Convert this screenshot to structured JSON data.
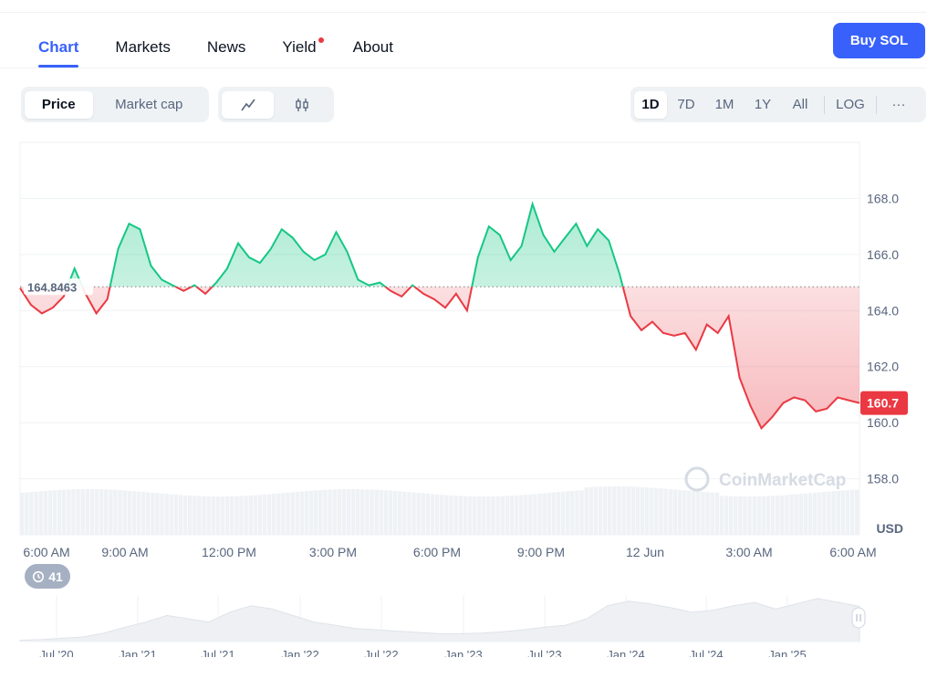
{
  "nav": {
    "tabs": [
      {
        "label": "Chart"
      },
      {
        "label": "Markets"
      },
      {
        "label": "News"
      },
      {
        "label": "Yield"
      },
      {
        "label": "About"
      }
    ],
    "buy_label": "Buy SOL"
  },
  "controls": {
    "metric_options": [
      "Price",
      "Market cap"
    ],
    "selected_metric": "Price",
    "chart_style_icons": [
      "line-chart-icon",
      "candlestick-icon"
    ],
    "selected_style": "line-chart-icon",
    "ranges": [
      "1D",
      "7D",
      "1M",
      "1Y",
      "All",
      "LOG"
    ],
    "selected_range": "1D",
    "more_label": "···"
  },
  "chart_data": {
    "type": "line",
    "reference_price": "164.8463",
    "current_price": "160.7",
    "currency_label": "USD",
    "watermark": "CoinMarketCap",
    "y_ticks": [
      "168.0",
      "166.0",
      "164.0",
      "162.0",
      "160.0",
      "158.0"
    ],
    "ylim": [
      156.0,
      170.0
    ],
    "x_ticks": [
      "6:00 AM",
      "9:00 AM",
      "12:00 PM",
      "3:00 PM",
      "6:00 PM",
      "9:00 PM",
      "12 Jun",
      "3:00 AM",
      "6:00 AM"
    ],
    "series": [
      {
        "values": [
          164.8,
          164.2,
          163.9,
          164.1,
          164.5,
          165.5,
          164.6,
          163.9,
          164.4,
          166.2,
          167.1,
          166.9,
          165.6,
          165.1,
          164.9,
          164.7,
          164.9,
          164.6,
          165.0,
          165.5,
          166.4,
          165.9,
          165.7,
          166.2,
          166.9,
          166.6,
          166.1,
          165.8,
          166.0,
          166.8,
          166.1,
          165.1,
          164.9,
          165.0,
          164.7,
          164.5,
          164.9,
          164.6,
          164.4,
          164.1,
          164.6,
          164.0,
          165.9,
          167.0,
          166.7,
          165.8,
          166.3,
          167.8,
          166.7,
          166.1,
          166.6,
          167.1,
          166.3,
          166.9,
          166.5,
          165.3,
          163.8,
          163.3,
          163.6,
          163.2,
          163.1,
          163.2,
          162.6,
          163.5,
          163.2,
          163.8,
          161.6,
          160.6,
          159.8,
          160.2,
          160.7,
          160.9,
          160.8,
          160.4,
          160.5,
          160.9,
          160.8,
          160.7
        ],
        "colors": {
          "up": "#16c784",
          "down": "#ea3943"
        }
      }
    ],
    "volume_note": "",
    "history_badge": "41",
    "overview_ticks": [
      "Jul '20",
      "Jan '21",
      "Jul '21",
      "Jan '22",
      "Jul '22",
      "Jan '23",
      "Jul '23",
      "Jan '24",
      "Jul '24",
      "Jan '25"
    ],
    "overview_values": [
      2,
      3,
      5,
      7,
      13,
      22,
      30,
      40,
      35,
      30,
      45,
      55,
      50,
      40,
      30,
      25,
      20,
      18,
      16,
      14,
      12,
      12,
      13,
      15,
      18,
      22,
      25,
      35,
      55,
      62,
      58,
      52,
      45,
      48,
      55,
      60,
      50,
      58,
      66,
      60,
      54
    ],
    "colors": {
      "up": "#16c784",
      "down": "#ea3943",
      "accent": "#3861fb"
    }
  }
}
